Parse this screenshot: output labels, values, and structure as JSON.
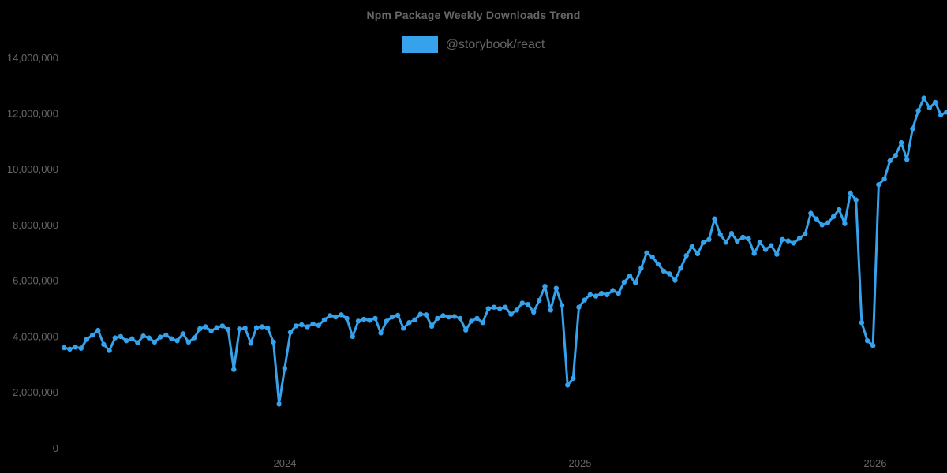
{
  "page": {
    "background_color": "#000000"
  },
  "header": {
    "title": "Npm Package Weekly Downloads Trend",
    "legend": {
      "label": "@storybook/react",
      "swatch_color": "#36a2eb",
      "text_color": "#666666"
    }
  },
  "chart_data": {
    "type": "line",
    "title": "Npm Package Weekly Downloads Trend",
    "legend_position": "top",
    "grid": false,
    "background_color": "#000000",
    "axis_text_color": "#666666",
    "ylabel": "",
    "xlabel": "",
    "y_axis": {
      "min": 0,
      "max": 14000000,
      "tick_values": [
        0,
        2000000,
        4000000,
        6000000,
        8000000,
        10000000,
        12000000,
        14000000
      ],
      "tick_labels": [
        "0",
        "2,000,000",
        "4,000,000",
        "6,000,000",
        "8,000,000",
        "10,000,000",
        "12,000,000",
        "14,000,000"
      ]
    },
    "x_axis": {
      "tick_labels": [
        "2024",
        "2025",
        "2026"
      ],
      "tick_years": [
        2024,
        2025,
        2026
      ],
      "start_decimal_year": 2023.252,
      "end_decimal_year": 2026.242,
      "unit": "weekly samples"
    },
    "series": [
      {
        "name": "@storybook/react",
        "color": "#36a2eb",
        "point_style": "circle",
        "x_start_decimal_year": 2023.252,
        "x_step_decimal_years": 0.019165,
        "values": [
          3600000,
          3550000,
          3620000,
          3580000,
          3900000,
          4050000,
          4220000,
          3720000,
          3500000,
          3950000,
          4000000,
          3850000,
          3920000,
          3780000,
          4020000,
          3950000,
          3800000,
          3980000,
          4050000,
          3920000,
          3850000,
          4100000,
          3800000,
          3950000,
          4280000,
          4350000,
          4200000,
          4320000,
          4380000,
          4250000,
          2820000,
          4270000,
          4300000,
          3760000,
          4320000,
          4350000,
          4300000,
          3800000,
          1580000,
          2860000,
          4150000,
          4380000,
          4420000,
          4350000,
          4450000,
          4400000,
          4600000,
          4750000,
          4700000,
          4780000,
          4650000,
          4000000,
          4550000,
          4620000,
          4580000,
          4650000,
          4130000,
          4550000,
          4700000,
          4760000,
          4300000,
          4500000,
          4600000,
          4800000,
          4780000,
          4370000,
          4650000,
          4750000,
          4700000,
          4720000,
          4650000,
          4230000,
          4550000,
          4650000,
          4500000,
          5000000,
          5050000,
          5000000,
          5050000,
          4800000,
          4950000,
          5200000,
          5150000,
          4880000,
          5300000,
          5800000,
          4950000,
          5730000,
          5120000,
          2260000,
          2500000,
          5050000,
          5310000,
          5500000,
          5450000,
          5550000,
          5500000,
          5650000,
          5550000,
          5950000,
          6170000,
          5930000,
          6450000,
          7000000,
          6850000,
          6600000,
          6350000,
          6250000,
          6020000,
          6450000,
          6900000,
          7230000,
          6970000,
          7370000,
          7480000,
          8220000,
          7660000,
          7380000,
          7700000,
          7420000,
          7560000,
          7500000,
          6980000,
          7370000,
          7120000,
          7260000,
          6950000,
          7480000,
          7430000,
          7350000,
          7520000,
          7680000,
          8420000,
          8220000,
          8000000,
          8080000,
          8300000,
          8550000,
          8050000,
          9150000,
          8900000,
          4500000,
          3850000,
          3680000,
          9450000,
          9650000,
          10300000,
          10500000,
          10950000,
          10350000,
          11450000,
          12100000,
          12550000,
          12200000,
          12400000,
          11950000,
          12050000
        ]
      }
    ]
  }
}
